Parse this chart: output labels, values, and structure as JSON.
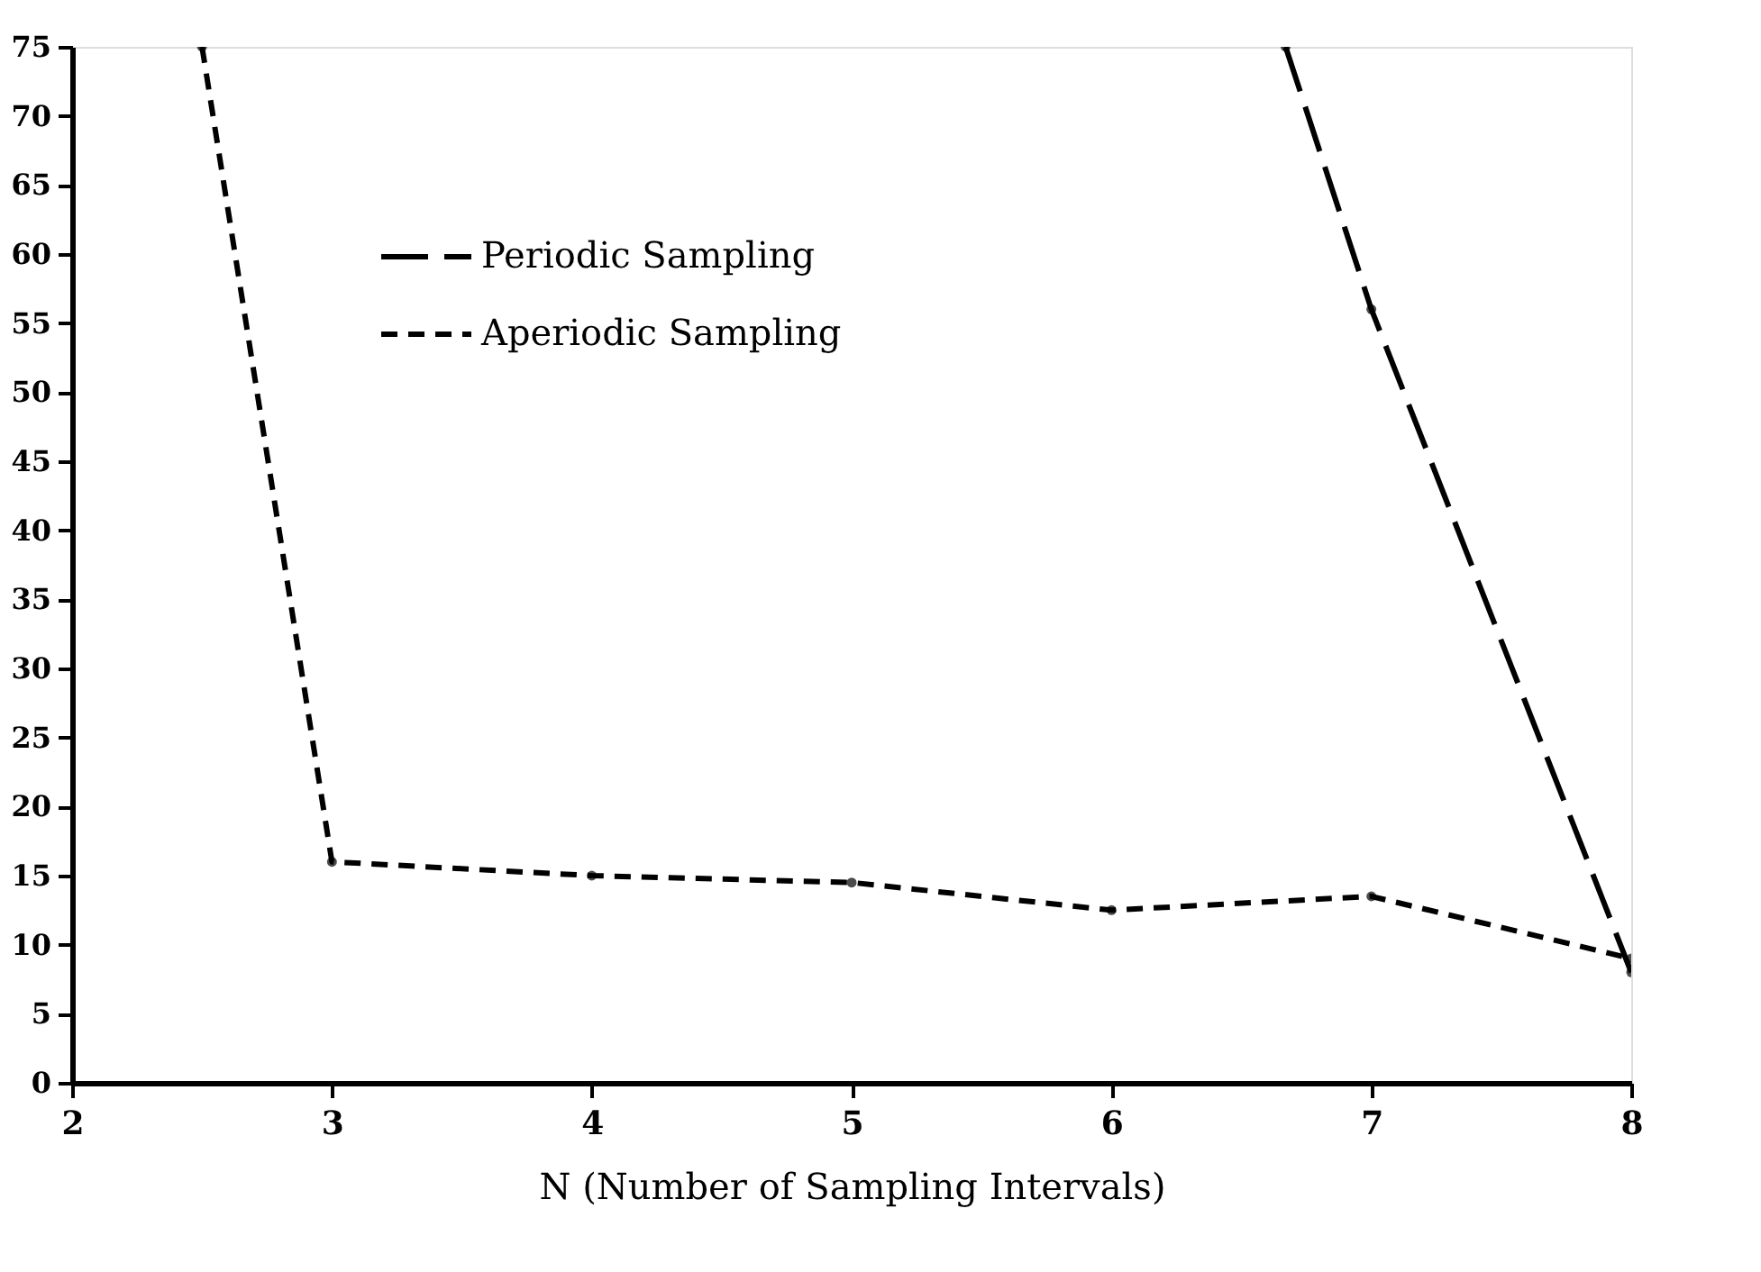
{
  "chart_data": {
    "type": "line",
    "xlabel": "N (Number of Sampling Intervals)",
    "series": [
      {
        "name": "Periodic Sampling",
        "color": "#000000",
        "line_style": "dashed",
        "x": [
          6.67,
          7,
          8
        ],
        "values": [
          75,
          56,
          8
        ]
      },
      {
        "name": "Aperiodic Sampling",
        "color": "#000000",
        "line_style": "dashed",
        "x": [
          2.5,
          3,
          4,
          5,
          6,
          7,
          8
        ],
        "values": [
          75,
          16,
          15,
          14.5,
          12.5,
          13.5,
          9
        ]
      }
    ],
    "xlim": [
      2,
      8
    ],
    "xticks": [
      2,
      3,
      4,
      5,
      6,
      7,
      8
    ],
    "ylim": [
      0,
      75
    ],
    "yticks": [
      0,
      5,
      10,
      15,
      20,
      25,
      30,
      35,
      40,
      45,
      50,
      55,
      60,
      65,
      70,
      75
    ],
    "grid": false,
    "legend": "top",
    "marker": "circle"
  }
}
